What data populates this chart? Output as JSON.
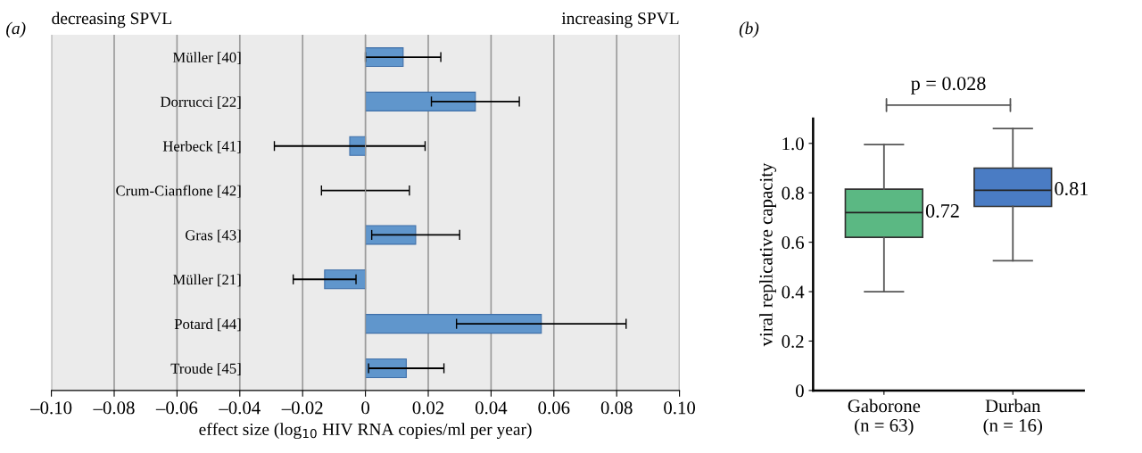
{
  "chart_data": [
    {
      "type": "bar",
      "orientation": "horizontal",
      "title": "(a)",
      "xlabel": "effect size (log$_{10}$ HIV RNA copies/ml per year)",
      "annotations": [
        "decreasing SPVL",
        "increasing SPVL"
      ],
      "categories": [
        "Müller [40]",
        "Dorrucci [22]",
        "Herbeck [41]",
        "Crum-Cianflone [42]",
        "Gras [43]",
        "Müller [21]",
        "Potard [44]",
        "Troude [45]"
      ],
      "series": [
        {
          "color": "#6096cc",
          "values": [
            0.012,
            0.035,
            -0.005,
            0,
            0.016,
            -0.013,
            0.056,
            0.013
          ],
          "errors": [
            [
              0,
              0.024
            ],
            [
              0.021,
              0.049
            ],
            [
              -0.029,
              0.019
            ],
            [
              -0.014,
              0.014
            ],
            [
              0.002,
              0.03
            ],
            [
              -0.023,
              -0.003
            ],
            [
              0.029,
              0.083
            ],
            [
              0.001,
              0.025
            ]
          ]
        }
      ],
      "xlim": [
        -0.1,
        0.1
      ],
      "xticks": [
        {
          "value": -0.1,
          "label": "–0.10"
        },
        {
          "value": -0.08,
          "label": "–0.08"
        },
        {
          "value": -0.06,
          "label": "–0.06"
        },
        {
          "value": -0.04,
          "label": "–0.04"
        },
        {
          "value": -0.02,
          "label": "–0.02"
        },
        {
          "value": 0,
          "label": "0"
        },
        {
          "value": 0.02,
          "label": "0.02"
        },
        {
          "value": 0.04,
          "label": "0.04"
        },
        {
          "value": 0.06,
          "label": "0.06"
        },
        {
          "value": 0.08,
          "label": "0.08"
        },
        {
          "value": 0.1,
          "label": "0.10"
        }
      ],
      "grid": "x"
    },
    {
      "type": "box",
      "title": "(b)",
      "ylabel": "viral replicative capacity",
      "annotations": [
        "p = 0.028"
      ],
      "categories": [
        "Gaborone\n(n = 63)",
        "Durban\n(n = 16)"
      ],
      "colors": [
        "#5bb883",
        "#4a7cc4"
      ],
      "boxes": [
        {
          "low": 0.4,
          "q1": 0.62,
          "median": 0.72,
          "q3": 0.815,
          "high": 0.995
        },
        {
          "low": 0.525,
          "q1": 0.745,
          "median": 0.81,
          "q3": 0.9,
          "high": 1.06
        }
      ],
      "value_labels": [
        "0.72",
        "0.81"
      ],
      "ylim": [
        0,
        1.1
      ],
      "yticks": [
        0,
        {
          "value": 0.2,
          "label": "0.2"
        },
        {
          "value": 0.4,
          "label": "0.4"
        },
        {
          "value": 0.6,
          "label": "0.6"
        },
        {
          "value": 0.8,
          "label": "0.8"
        },
        {
          "value": 1.0,
          "label": "1.0"
        }
      ],
      "grid": false
    }
  ]
}
